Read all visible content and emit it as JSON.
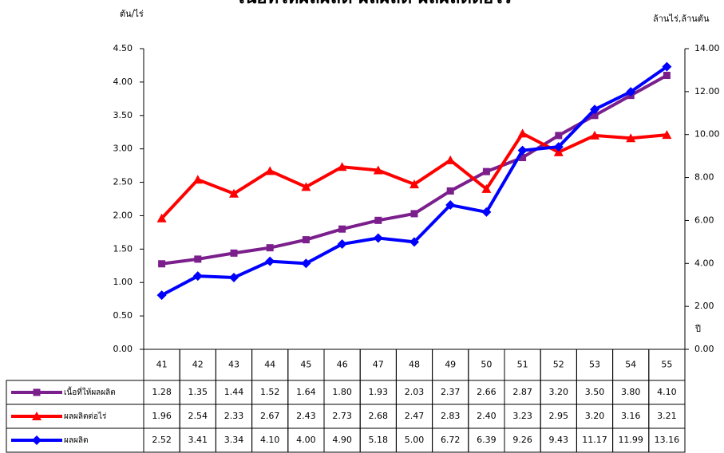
{
  "chart_data": {
    "type": "line",
    "title": "เนื้อที่ให้ผลผลิต ผลผลิต ผลผลิตต่อไร่",
    "y_label": "ตัน/ไร่",
    "y2_label": "ล้านไร่,ล้านตัน",
    "x_label": "ปี",
    "categories": [
      "41",
      "42",
      "43",
      "44",
      "45",
      "46",
      "47",
      "48",
      "49",
      "50",
      "51",
      "52",
      "53",
      "54",
      "55"
    ],
    "ylim": [
      0,
      4.5
    ],
    "yticks": [
      {
        "value": 0,
        "label": "0.00"
      },
      {
        "value": 0.5,
        "label": "0.50"
      },
      {
        "value": 1,
        "label": "1.00"
      },
      {
        "value": 1.5,
        "label": "1.50"
      },
      {
        "value": 2,
        "label": "2.00"
      },
      {
        "value": 2.5,
        "label": "2.50"
      },
      {
        "value": 3,
        "label": "3.00"
      },
      {
        "value": 3.5,
        "label": "3.50"
      },
      {
        "value": 4,
        "label": "4.00"
      },
      {
        "value": 4.5,
        "label": "4.50"
      }
    ],
    "y2lim": [
      0,
      14
    ],
    "y2ticks": [
      {
        "value": 0,
        "label": "0.00"
      },
      {
        "value": 2,
        "label": "2.00"
      },
      {
        "value": 4,
        "label": "4.00"
      },
      {
        "value": 6,
        "label": "6.00"
      },
      {
        "value": 8,
        "label": "8.00"
      },
      {
        "value": 10,
        "label": "10.00"
      },
      {
        "value": 12,
        "label": "12.00"
      },
      {
        "value": 14,
        "label": "14.00"
      }
    ],
    "series": [
      {
        "name": "เนื้อที่ให้ผลผลิต",
        "color": "#7b1f8c",
        "marker": "square",
        "axis": "y",
        "values": [
          1.28,
          1.35,
          1.44,
          1.52,
          1.64,
          1.8,
          1.93,
          2.03,
          2.37,
          2.66,
          2.87,
          3.2,
          3.5,
          3.8,
          4.1
        ],
        "value_labels": [
          "1.28",
          "1.35",
          "1.44",
          "1.52",
          "1.64",
          "1.80",
          "1.93",
          "2.03",
          "2.37",
          "2.66",
          "2.87",
          "3.20",
          "3.50",
          "3.80",
          "4.10"
        ]
      },
      {
        "name": "ผลผลิตต่อไร่",
        "color": "#ff0000",
        "marker": "triangle",
        "axis": "y",
        "values": [
          1.96,
          2.54,
          2.33,
          2.67,
          2.43,
          2.73,
          2.68,
          2.47,
          2.83,
          2.4,
          3.23,
          2.95,
          3.2,
          3.16,
          3.21
        ],
        "value_labels": [
          "1.96",
          "2.54",
          "2.33",
          "2.67",
          "2.43",
          "2.73",
          "2.68",
          "2.47",
          "2.83",
          "2.40",
          "3.23",
          "2.95",
          "3.20",
          "3.16",
          "3.21"
        ]
      },
      {
        "name": "ผลผลิต",
        "color": "#0000ff",
        "marker": "diamond",
        "axis": "y2",
        "values": [
          2.52,
          3.41,
          3.34,
          4.1,
          4,
          4.9,
          5.18,
          5,
          6.72,
          6.39,
          9.26,
          9.43,
          11.17,
          11.99,
          13.16
        ],
        "value_labels": [
          "2.52",
          "3.41",
          "3.34",
          "4.10",
          "4.00",
          "4.90",
          "5.18",
          "5.00",
          "6.72",
          "6.39",
          "9.26",
          "9.43",
          "11.17",
          "11.99",
          "13.16"
        ]
      }
    ]
  }
}
